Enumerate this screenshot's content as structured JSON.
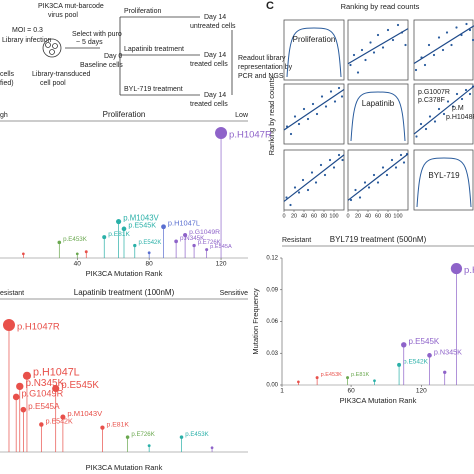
{
  "workflow": [
    "PIK3CA mut-barcode",
    "virus pool",
    "MOI = 0.3",
    "Library infection",
    "cells",
    "fied)",
    "Library-transduced",
    "cell pool",
    "Select with puro",
    "~ 5 days",
    "Day 0",
    "Baseline cells",
    "Proliferation",
    "Day 14",
    "untreated cells",
    "Lapatinib treatment",
    "Day 14",
    "treated cells",
    "BYL-719 treatment",
    "Day 14",
    "treated cells",
    "Readout library",
    "representation by",
    "PCR and NGS"
  ],
  "panel_c": {
    "label": "C",
    "title": "Ranking by read counts",
    "ylabel": "Ranking by read counts",
    "diagonal": [
      "Proliferation",
      "Lapatinib",
      "BYL-719"
    ],
    "ticks": [
      0,
      20,
      40,
      60,
      80,
      100
    ],
    "lim": [
      0,
      120
    ],
    "annotations": [
      "p.G1007R",
      "p.C378F",
      "p.M",
      "p.H1048R"
    ],
    "cells": [
      {
        "name": "Lapatinib vs Proliferation",
        "points": [
          [
            5,
            30
          ],
          [
            12,
            50
          ],
          [
            20,
            15
          ],
          [
            28,
            60
          ],
          [
            35,
            40
          ],
          [
            45,
            75
          ],
          [
            52,
            55
          ],
          [
            60,
            90
          ],
          [
            70,
            65
          ],
          [
            80,
            100
          ],
          [
            90,
            80
          ],
          [
            100,
            110
          ],
          [
            108,
            95
          ],
          [
            115,
            70
          ]
        ]
      },
      {
        "name": "BYL-719 vs Proliferation",
        "points": [
          [
            4,
            20
          ],
          [
            15,
            45
          ],
          [
            22,
            30
          ],
          [
            30,
            70
          ],
          [
            40,
            50
          ],
          [
            50,
            85
          ],
          [
            58,
            60
          ],
          [
            66,
            95
          ],
          [
            75,
            70
          ],
          [
            85,
            105
          ],
          [
            95,
            90
          ],
          [
            105,
            112
          ],
          [
            112,
            100
          ],
          [
            118,
            80
          ]
        ]
      },
      {
        "name": "Proliferation vs Lapatinib",
        "points": [
          [
            6,
            35
          ],
          [
            14,
            20
          ],
          [
            22,
            55
          ],
          [
            30,
            40
          ],
          [
            40,
            70
          ],
          [
            48,
            50
          ],
          [
            58,
            80
          ],
          [
            66,
            60
          ],
          [
            76,
            95
          ],
          [
            84,
            75
          ],
          [
            94,
            105
          ],
          [
            102,
            85
          ],
          [
            110,
            112
          ],
          [
            116,
            95
          ]
        ]
      },
      {
        "name": "BYL-719 vs Lapatinib",
        "points": [
          [
            5,
            15
          ],
          [
            14,
            40
          ],
          [
            24,
            30
          ],
          [
            32,
            55
          ],
          [
            42,
            45
          ],
          [
            50,
            70
          ],
          [
            60,
            60
          ],
          [
            68,
            85
          ],
          [
            78,
            75
          ],
          [
            86,
            100
          ],
          [
            96,
            90
          ],
          [
            104,
            108
          ],
          [
            112,
            100
          ],
          [
            118,
            115
          ]
        ]
      },
      {
        "name": "Proliferation vs BYL-719",
        "points": [
          [
            5,
            25
          ],
          [
            13,
            10
          ],
          [
            22,
            45
          ],
          [
            30,
            35
          ],
          [
            38,
            60
          ],
          [
            48,
            40
          ],
          [
            56,
            75
          ],
          [
            64,
            55
          ],
          [
            74,
            90
          ],
          [
            82,
            70
          ],
          [
            92,
            100
          ],
          [
            100,
            85
          ],
          [
            110,
            110
          ],
          [
            117,
            100
          ]
        ]
      },
      {
        "name": "Lapatinib vs BYL-719",
        "points": [
          [
            6,
            20
          ],
          [
            15,
            40
          ],
          [
            24,
            25
          ],
          [
            34,
            55
          ],
          [
            42,
            45
          ],
          [
            52,
            70
          ],
          [
            60,
            55
          ],
          [
            70,
            85
          ],
          [
            78,
            70
          ],
          [
            88,
            100
          ],
          [
            96,
            85
          ],
          [
            106,
            110
          ],
          [
            112,
            95
          ],
          [
            118,
            112
          ]
        ]
      }
    ]
  },
  "proliferation": {
    "left": "gh",
    "title": "Proliferation",
    "right": "Low",
    "xlabel": "PIK3CA Mutation Rank",
    "xticks": [
      40,
      80,
      120
    ],
    "xlim": [
      -3,
      135
    ],
    "ylim": [
      0,
      0.12
    ],
    "points": [
      {
        "rank": 10,
        "value": 0.004,
        "color": "#e8504a"
      },
      {
        "rank": 30,
        "value": 0.015,
        "label": "p.E453K",
        "color": "#6aa84f"
      },
      {
        "rank": 40,
        "value": 0.004,
        "color": "#6aa84f"
      },
      {
        "rank": 45,
        "value": 0.006,
        "color": "#e8504a"
      },
      {
        "rank": 55,
        "value": 0.02,
        "label": "p.E81K",
        "color": "#2ab0a8"
      },
      {
        "rank": 63,
        "value": 0.035,
        "label": "p.M1043V",
        "color": "#2ab0a8"
      },
      {
        "rank": 66,
        "value": 0.028,
        "label": "p.E545K",
        "color": "#2ab0a8"
      },
      {
        "rank": 72,
        "value": 0.012,
        "label": "p.E542K",
        "color": "#2ab0a8"
      },
      {
        "rank": 80,
        "value": 0.005,
        "color": "#5a6fd0"
      },
      {
        "rank": 88,
        "value": 0.03,
        "label": "p.H1047L",
        "color": "#5a6fd0"
      },
      {
        "rank": 100,
        "value": 0.022,
        "label": "p.G1049R",
        "color": "#8e63c9"
      },
      {
        "rank": 95,
        "value": 0.016,
        "label": "p.N345K",
        "color": "#8e63c9"
      },
      {
        "rank": 105,
        "value": 0.012,
        "label": "p.E726K",
        "color": "#8e63c9"
      },
      {
        "rank": 112,
        "value": 0.008,
        "label": "p.E545A",
        "color": "#8e63c9"
      },
      {
        "rank": 120,
        "value": 0.12,
        "label": "p.H1047R",
        "color": "#8e63c9"
      }
    ]
  },
  "lapatinib": {
    "left": "esistant",
    "title": "Lapatinib treatment (100nM)",
    "right": "Sensitive",
    "xlabel": "PIK3CA Mutation Rank",
    "xlim": [
      -3,
      135
    ],
    "ylim": [
      0,
      0.12
    ],
    "points": [
      {
        "rank": 2,
        "value": 0.12,
        "label": "p.H1047R",
        "color": "#e8504a"
      },
      {
        "rank": 12,
        "value": 0.072,
        "label": "p.H1047L",
        "color": "#e8504a"
      },
      {
        "rank": 8,
        "value": 0.062,
        "label": "p.N345K",
        "color": "#e8504a"
      },
      {
        "rank": 28,
        "value": 0.06,
        "label": "p.E545K",
        "color": "#e8504a"
      },
      {
        "rank": 6,
        "value": 0.052,
        "label": "p.G1049R",
        "color": "#e8504a"
      },
      {
        "rank": 10,
        "value": 0.04,
        "label": "p.E545A",
        "color": "#e8504a"
      },
      {
        "rank": 32,
        "value": 0.033,
        "label": "p.M1043V",
        "color": "#e8504a"
      },
      {
        "rank": 20,
        "value": 0.026,
        "label": "p.E542K",
        "color": "#e8504a"
      },
      {
        "rank": 54,
        "value": 0.023,
        "label": "p.E81K",
        "color": "#e8504a"
      },
      {
        "rank": 68,
        "value": 0.014,
        "label": "p.E726K",
        "color": "#6aa84f"
      },
      {
        "rank": 98,
        "value": 0.014,
        "label": "p.E453K",
        "color": "#2ab0a8"
      },
      {
        "rank": 80,
        "value": 0.006,
        "color": "#2ab0a8"
      },
      {
        "rank": 115,
        "value": 0.004,
        "color": "#8e63c9"
      }
    ]
  },
  "byl719": {
    "left": "Resistant",
    "title": "BYL719 treatment (500nM)",
    "ylabel": "Mutation Frequency",
    "xlabel": "PIK3CA Mutation Rank",
    "xticks": [
      1,
      60,
      120
    ],
    "xlim": [
      1,
      165
    ],
    "ylim": [
      0,
      0.12
    ],
    "yticks": [
      {
        "value": 0,
        "label": "0.00"
      },
      {
        "value": 0.03,
        "label": "0.03"
      },
      {
        "value": 0.06,
        "label": "0.06"
      },
      {
        "value": 0.09,
        "label": "0.09"
      },
      {
        "value": 0.12,
        "label": "0.12"
      }
    ],
    "points": [
      {
        "rank": 15,
        "value": 0.003,
        "color": "#e8504a"
      },
      {
        "rank": 31,
        "value": 0.007,
        "label": "p.E453K",
        "color": "#e8504a"
      },
      {
        "rank": 57,
        "value": 0.007,
        "label": "p.E81K",
        "color": "#6aa84f"
      },
      {
        "rank": 80,
        "value": 0.004,
        "color": "#2ab0a8"
      },
      {
        "rank": 101,
        "value": 0.019,
        "label": "p.E542K",
        "color": "#2ab0a8"
      },
      {
        "rank": 105,
        "value": 0.038,
        "label": "p.E545K",
        "color": "#8e63c9"
      },
      {
        "rank": 127,
        "value": 0.028,
        "label": "p.N345K",
        "color": "#8e63c9"
      },
      {
        "rank": 140,
        "value": 0.012,
        "color": "#8e63c9"
      },
      {
        "rank": 150,
        "value": 0.11,
        "label": "p.H104",
        "color": "#8e63c9"
      }
    ]
  }
}
